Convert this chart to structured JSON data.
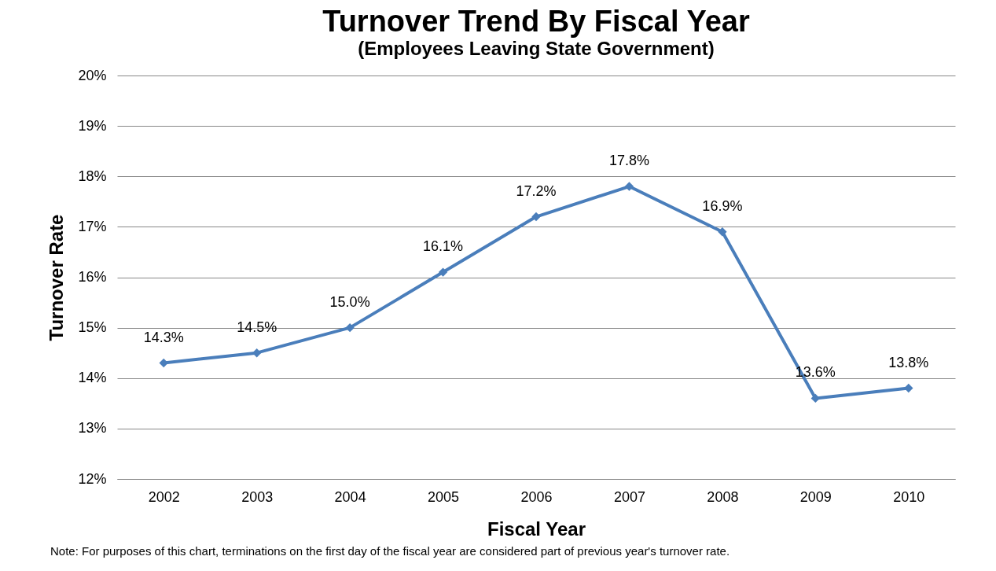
{
  "chart_data": {
    "type": "line",
    "title": "Turnover Trend By Fiscal Year",
    "subtitle": "(Employees Leaving State Government)",
    "xlabel": "Fiscal Year",
    "ylabel": "Turnover Rate",
    "categories": [
      "2002",
      "2003",
      "2004",
      "2005",
      "2006",
      "2007",
      "2008",
      "2009",
      "2010"
    ],
    "series": [
      {
        "color": "#4a7ebb",
        "values": [
          14.3,
          14.5,
          15.0,
          16.1,
          17.2,
          17.8,
          16.9,
          13.6,
          13.8
        ],
        "value_labels": [
          "14.3%",
          "14.5%",
          "15.0%",
          "16.1%",
          "17.2%",
          "17.8%",
          "16.9%",
          "13.6%",
          "13.8%"
        ]
      }
    ],
    "ylim": [
      12,
      20
    ],
    "yticks": [
      {
        "value": 12,
        "label": "12%"
      },
      {
        "value": 13,
        "label": "13%"
      },
      {
        "value": 14,
        "label": "14%"
      },
      {
        "value": 15,
        "label": "15%"
      },
      {
        "value": 16,
        "label": "16%"
      },
      {
        "value": 17,
        "label": "17%"
      },
      {
        "value": 18,
        "label": "18%"
      },
      {
        "value": 19,
        "label": "19%"
      },
      {
        "value": 20,
        "label": "20%"
      }
    ],
    "grid": "y",
    "marker": "diamond",
    "line_style": "solid",
    "annotations": [
      "Note:  For purposes of this chart, terminations on the first day of the fiscal year are considered part of previous year's turnover rate."
    ]
  }
}
